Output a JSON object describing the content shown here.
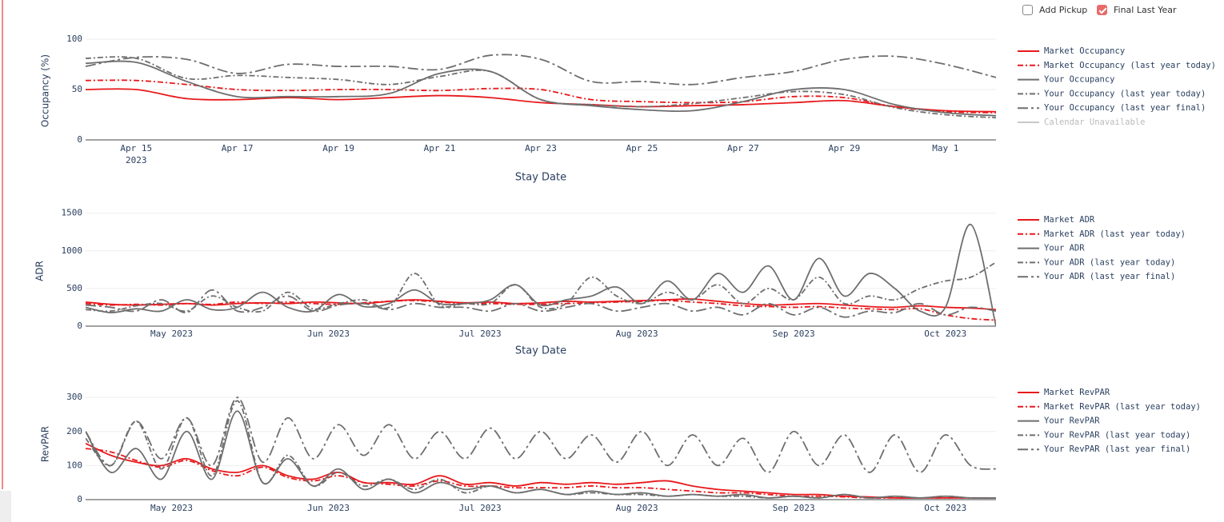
{
  "controls": [
    {
      "label": "Add Pickup",
      "checked": false
    },
    {
      "label": "Final Last Year",
      "checked": true
    }
  ],
  "chart_data": [
    {
      "type": "line",
      "ylabel": "Occupancy (%)",
      "xlabel": "Stay Date",
      "x": [
        "2023-04-14",
        "2023-04-15",
        "2023-04-16",
        "2023-04-17",
        "2023-04-18",
        "2023-04-19",
        "2023-04-20",
        "2023-04-21",
        "2023-04-22",
        "2023-04-23",
        "2023-04-24",
        "2023-04-25",
        "2023-04-26",
        "2023-04-27",
        "2023-04-28",
        "2023-04-29",
        "2023-04-30",
        "2023-05-01",
        "2023-05-02"
      ],
      "xlim": [
        "2023-04-14",
        "2023-05-02"
      ],
      "xticks": [
        {
          "value": "2023-04-15",
          "label": "Apr 15",
          "sublabel": "2023"
        },
        {
          "value": "2023-04-17",
          "label": "Apr 17"
        },
        {
          "value": "2023-04-19",
          "label": "Apr 19"
        },
        {
          "value": "2023-04-21",
          "label": "Apr 21"
        },
        {
          "value": "2023-04-23",
          "label": "Apr 23"
        },
        {
          "value": "2023-04-25",
          "label": "Apr 25"
        },
        {
          "value": "2023-04-27",
          "label": "Apr 27"
        },
        {
          "value": "2023-04-29",
          "label": "Apr 29"
        },
        {
          "value": "2023-05-01",
          "label": "May 1"
        }
      ],
      "ylim": [
        0,
        104
      ],
      "yticks": [
        0,
        50,
        100
      ],
      "grid": true,
      "series": [
        {
          "name": "Market Occupancy",
          "color": "#e8191c",
          "dash": "solid",
          "values": [
            50,
            50,
            41,
            40,
            42,
            40,
            42,
            44,
            42,
            37,
            35,
            33,
            34,
            35,
            37,
            39,
            33,
            29,
            28
          ]
        },
        {
          "name": "Market Occupancy (last year today)",
          "color": "#e8191c",
          "dash": "dashdot",
          "values": [
            59,
            59,
            55,
            50,
            49,
            50,
            50,
            49,
            51,
            50,
            40,
            38,
            37,
            38,
            43,
            42,
            33,
            28,
            27
          ]
        },
        {
          "name": "Your Occupancy",
          "color": "#6e6e6e",
          "dash": "solid",
          "values": [
            76,
            77,
            58,
            43,
            43,
            43,
            46,
            66,
            68,
            40,
            34,
            30,
            29,
            38,
            50,
            50,
            35,
            27,
            24
          ]
        },
        {
          "name": "Your Occupancy (last year today)",
          "color": "#6e6e6e",
          "dash": "dashdot",
          "values": [
            81,
            81,
            61,
            64,
            62,
            60,
            55,
            63,
            68,
            40,
            35,
            33,
            36,
            42,
            48,
            45,
            32,
            25,
            22
          ]
        },
        {
          "name": "Your Occupancy (last year final)",
          "color": "#6e6e6e",
          "dash": "longdashdot",
          "values": [
            73,
            82,
            80,
            66,
            75,
            73,
            73,
            70,
            84,
            80,
            58,
            58,
            55,
            62,
            68,
            80,
            83,
            75,
            62
          ]
        },
        {
          "name": "Calendar Unavailable",
          "color": "#c8c8c8",
          "dash": "solid",
          "values": [
            null,
            null,
            null,
            null,
            null,
            null,
            null,
            null,
            null,
            null,
            null,
            null,
            null,
            null,
            null,
            null,
            null,
            null,
            null
          ]
        }
      ]
    },
    {
      "type": "line",
      "ylabel": "ADR",
      "xlabel": "Stay Date",
      "x": [
        "2023-04-14",
        "2023-04-19",
        "2023-04-24",
        "2023-04-29",
        "2023-05-04",
        "2023-05-09",
        "2023-05-14",
        "2023-05-19",
        "2023-05-24",
        "2023-05-29",
        "2023-06-03",
        "2023-06-08",
        "2023-06-13",
        "2023-06-18",
        "2023-06-23",
        "2023-06-28",
        "2023-07-03",
        "2023-07-08",
        "2023-07-13",
        "2023-07-18",
        "2023-07-23",
        "2023-07-28",
        "2023-08-02",
        "2023-08-07",
        "2023-08-12",
        "2023-08-17",
        "2023-08-22",
        "2023-08-27",
        "2023-09-01",
        "2023-09-06",
        "2023-09-11",
        "2023-09-16",
        "2023-09-21",
        "2023-09-26",
        "2023-10-01",
        "2023-10-06",
        "2023-10-11"
      ],
      "xlim": [
        "2023-04-14",
        "2023-10-11"
      ],
      "xticks": [
        {
          "value": "2023-05-01",
          "label": "May 2023"
        },
        {
          "value": "2023-06-01",
          "label": "Jun 2023"
        },
        {
          "value": "2023-07-01",
          "label": "Jul 2023"
        },
        {
          "value": "2023-08-01",
          "label": "Aug 2023"
        },
        {
          "value": "2023-09-01",
          "label": "Sep 2023"
        },
        {
          "value": "2023-10-01",
          "label": "Oct 2023"
        }
      ],
      "ylim": [
        0,
        1550
      ],
      "yticks": [
        0,
        500,
        1000,
        1500
      ],
      "grid": true,
      "series": [
        {
          "name": "Market ADR",
          "color": "#e8191c",
          "dash": "solid",
          "values": [
            320,
            290,
            280,
            290,
            300,
            280,
            300,
            310,
            300,
            320,
            310,
            300,
            330,
            350,
            330,
            310,
            320,
            300,
            310,
            330,
            320,
            330,
            340,
            350,
            360,
            330,
            300,
            280,
            290,
            300,
            280,
            260,
            250,
            270,
            250,
            240,
            220
          ]
        },
        {
          "name": "Market ADR (last year today)",
          "color": "#e8191c",
          "dash": "dashdot",
          "values": [
            300,
            280,
            290,
            280,
            300,
            290,
            320,
            300,
            320,
            300,
            290,
            310,
            330,
            340,
            320,
            300,
            300,
            290,
            290,
            300,
            310,
            320,
            330,
            340,
            320,
            300,
            270,
            260,
            250,
            260,
            240,
            230,
            220,
            230,
            150,
            100,
            80
          ]
        },
        {
          "name": "Your ADR",
          "color": "#6e6e6e",
          "dash": "solid",
          "values": [
            250,
            180,
            230,
            200,
            350,
            220,
            250,
            450,
            250,
            200,
            420,
            260,
            300,
            480,
            300,
            300,
            350,
            550,
            280,
            350,
            400,
            520,
            300,
            600,
            350,
            700,
            450,
            800,
            350,
            900,
            400,
            700,
            500,
            200,
            250,
            1350,
            0
          ]
        },
        {
          "name": "Your ADR (last year today)",
          "color": "#6e6e6e",
          "dash": "dashdot",
          "values": [
            220,
            200,
            270,
            300,
            200,
            400,
            250,
            200,
            450,
            230,
            300,
            350,
            250,
            700,
            280,
            300,
            300,
            550,
            250,
            300,
            650,
            400,
            300,
            450,
            350,
            550,
            300,
            500,
            350,
            650,
            300,
            400,
            350,
            500,
            600,
            650,
            850
          ]
        },
        {
          "name": "Your ADR (last year final)",
          "color": "#6e6e6e",
          "dash": "longdashdot",
          "values": [
            280,
            250,
            200,
            350,
            180,
            480,
            200,
            250,
            400,
            200,
            280,
            300,
            220,
            300,
            250,
            250,
            200,
            300,
            200,
            250,
            300,
            200,
            250,
            300,
            200,
            250,
            150,
            300,
            150,
            250,
            120,
            200,
            180,
            300,
            150,
            250,
            200
          ]
        }
      ]
    },
    {
      "type": "line",
      "ylabel": "RevPAR",
      "x": [
        "2023-04-14",
        "2023-04-19",
        "2023-04-24",
        "2023-04-29",
        "2023-05-04",
        "2023-05-09",
        "2023-05-14",
        "2023-05-19",
        "2023-05-24",
        "2023-05-29",
        "2023-06-03",
        "2023-06-08",
        "2023-06-13",
        "2023-06-18",
        "2023-06-23",
        "2023-06-28",
        "2023-07-03",
        "2023-07-08",
        "2023-07-13",
        "2023-07-18",
        "2023-07-23",
        "2023-07-28",
        "2023-08-02",
        "2023-08-07",
        "2023-08-12",
        "2023-08-17",
        "2023-08-22",
        "2023-08-27",
        "2023-09-01",
        "2023-09-06",
        "2023-09-11",
        "2023-09-16",
        "2023-09-21",
        "2023-09-26",
        "2023-10-01",
        "2023-10-06",
        "2023-10-11"
      ],
      "xlim": [
        "2023-04-14",
        "2023-10-11"
      ],
      "xticks": [
        {
          "value": "2023-05-01",
          "label": "May 2023"
        },
        {
          "value": "2023-06-01",
          "label": "Jun 2023"
        },
        {
          "value": "2023-07-01",
          "label": "Jul 2023"
        },
        {
          "value": "2023-08-01",
          "label": "Aug 2023"
        },
        {
          "value": "2023-09-01",
          "label": "Sep 2023"
        },
        {
          "value": "2023-10-01",
          "label": "Oct 2023"
        }
      ],
      "ylim": [
        0,
        345
      ],
      "yticks": [
        0,
        100,
        200,
        300
      ],
      "grid": true,
      "series": [
        {
          "name": "Market RevPAR",
          "color": "#e8191c",
          "dash": "solid",
          "values": [
            165,
            130,
            110,
            100,
            120,
            90,
            80,
            100,
            70,
            60,
            80,
            50,
            50,
            45,
            70,
            45,
            50,
            40,
            50,
            45,
            50,
            45,
            50,
            55,
            40,
            30,
            25,
            20,
            15,
            15,
            10,
            8,
            5,
            5,
            5,
            5,
            5
          ]
        },
        {
          "name": "Market RevPAR (last year today)",
          "color": "#e8191c",
          "dash": "dashdot",
          "values": [
            150,
            140,
            115,
            95,
            115,
            85,
            70,
            95,
            65,
            55,
            70,
            50,
            45,
            40,
            55,
            40,
            40,
            35,
            35,
            35,
            40,
            35,
            35,
            30,
            25,
            20,
            20,
            15,
            10,
            10,
            8,
            5,
            5,
            5,
            5,
            5,
            5
          ]
        },
        {
          "name": "Your RevPAR",
          "color": "#6e6e6e",
          "dash": "solid",
          "values": [
            200,
            80,
            150,
            60,
            200,
            60,
            260,
            50,
            120,
            40,
            90,
            30,
            60,
            20,
            50,
            30,
            40,
            20,
            30,
            15,
            25,
            15,
            20,
            10,
            15,
            10,
            15,
            5,
            10,
            5,
            15,
            5,
            10,
            5,
            10,
            5,
            5
          ]
        },
        {
          "name": "Your RevPAR (last year today)",
          "color": "#6e6e6e",
          "dash": "dashdot",
          "values": [
            180,
            100,
            230,
            90,
            240,
            70,
            290,
            50,
            130,
            40,
            80,
            40,
            60,
            30,
            60,
            20,
            40,
            20,
            30,
            15,
            20,
            15,
            15,
            10,
            15,
            10,
            10,
            5,
            10,
            5,
            15,
            5,
            10,
            5,
            10,
            5,
            5
          ]
        },
        {
          "name": "Your RevPAR (last year final)",
          "color": "#6e6e6e",
          "dash": "longdashdot",
          "values": [
            200,
            100,
            230,
            120,
            240,
            100,
            300,
            110,
            240,
            120,
            220,
            130,
            220,
            120,
            200,
            120,
            210,
            120,
            200,
            120,
            190,
            110,
            200,
            100,
            190,
            100,
            180,
            80,
            200,
            100,
            190,
            80,
            190,
            80,
            190,
            100,
            90
          ]
        }
      ]
    }
  ]
}
